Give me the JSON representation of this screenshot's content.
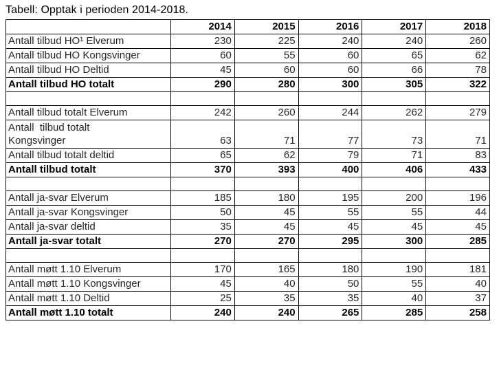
{
  "title": "Tabell: Opptak i perioden 2014-2018.",
  "table": {
    "years": [
      "2014",
      "2015",
      "2016",
      "2017",
      "2018"
    ],
    "rows": [
      {
        "type": "data",
        "label": "Antall tilbud HO¹ Elverum",
        "values": [
          "230",
          "225",
          "240",
          "240",
          "260"
        ]
      },
      {
        "type": "data",
        "label": "Antall tilbud HO Kongsvinger",
        "values": [
          "60",
          "55",
          "60",
          "65",
          "62"
        ]
      },
      {
        "type": "data",
        "label": "Antall tilbud HO Deltid",
        "values": [
          "45",
          "60",
          "60",
          "66",
          "78"
        ]
      },
      {
        "type": "total",
        "label": "Antall tilbud HO totalt",
        "values": [
          "290",
          "280",
          "300",
          "305",
          "322"
        ]
      },
      {
        "type": "spacer",
        "label": "",
        "values": [
          "",
          "",
          "",
          "",
          ""
        ]
      },
      {
        "type": "data",
        "label": "Antall tilbud totalt Elverum",
        "values": [
          "242",
          "260",
          "244",
          "262",
          "279"
        ]
      },
      {
        "type": "tall",
        "label": "Antall  tilbud totalt\nKongsvinger",
        "values": [
          "63",
          "71",
          "77",
          "73",
          "71"
        ]
      },
      {
        "type": "data",
        "label": "Antall tilbud totalt deltid",
        "values": [
          "65",
          "62",
          "79",
          "71",
          "83"
        ]
      },
      {
        "type": "total",
        "label": "Antall tilbud totalt",
        "values": [
          "370",
          "393",
          "400",
          "406",
          "433"
        ]
      },
      {
        "type": "spacer",
        "label": "",
        "values": [
          "",
          "",
          "",
          "",
          ""
        ]
      },
      {
        "type": "data",
        "label": "Antall ja-svar Elverum",
        "values": [
          "185",
          "180",
          "195",
          "200",
          "196"
        ]
      },
      {
        "type": "data",
        "label": "Antall ja-svar Kongsvinger",
        "values": [
          "50",
          "45",
          "55",
          "55",
          "44"
        ]
      },
      {
        "type": "data",
        "label": "Antall ja-svar deltid",
        "values": [
          "35",
          "45",
          "45",
          "45",
          "45"
        ]
      },
      {
        "type": "total",
        "label": "Antall ja-svar totalt",
        "values": [
          "270",
          "270",
          "295",
          "300",
          "285"
        ]
      },
      {
        "type": "spacer",
        "label": "",
        "values": [
          "",
          "",
          "",
          "",
          ""
        ]
      },
      {
        "type": "data",
        "label": "Antall møtt 1.10 Elverum",
        "values": [
          "170",
          "165",
          "180",
          "190",
          "181"
        ]
      },
      {
        "type": "data",
        "label": "Antall møtt 1.10 Kongsvinger",
        "values": [
          "45",
          "40",
          "50",
          "55",
          "40"
        ]
      },
      {
        "type": "data",
        "label": "Antall møtt 1.10 Deltid",
        "values": [
          "25",
          "35",
          "35",
          "40",
          "37"
        ]
      },
      {
        "type": "total",
        "label": "Antall møtt 1.10 totalt",
        "values": [
          "240",
          "240",
          "265",
          "285",
          "258"
        ]
      }
    ]
  }
}
